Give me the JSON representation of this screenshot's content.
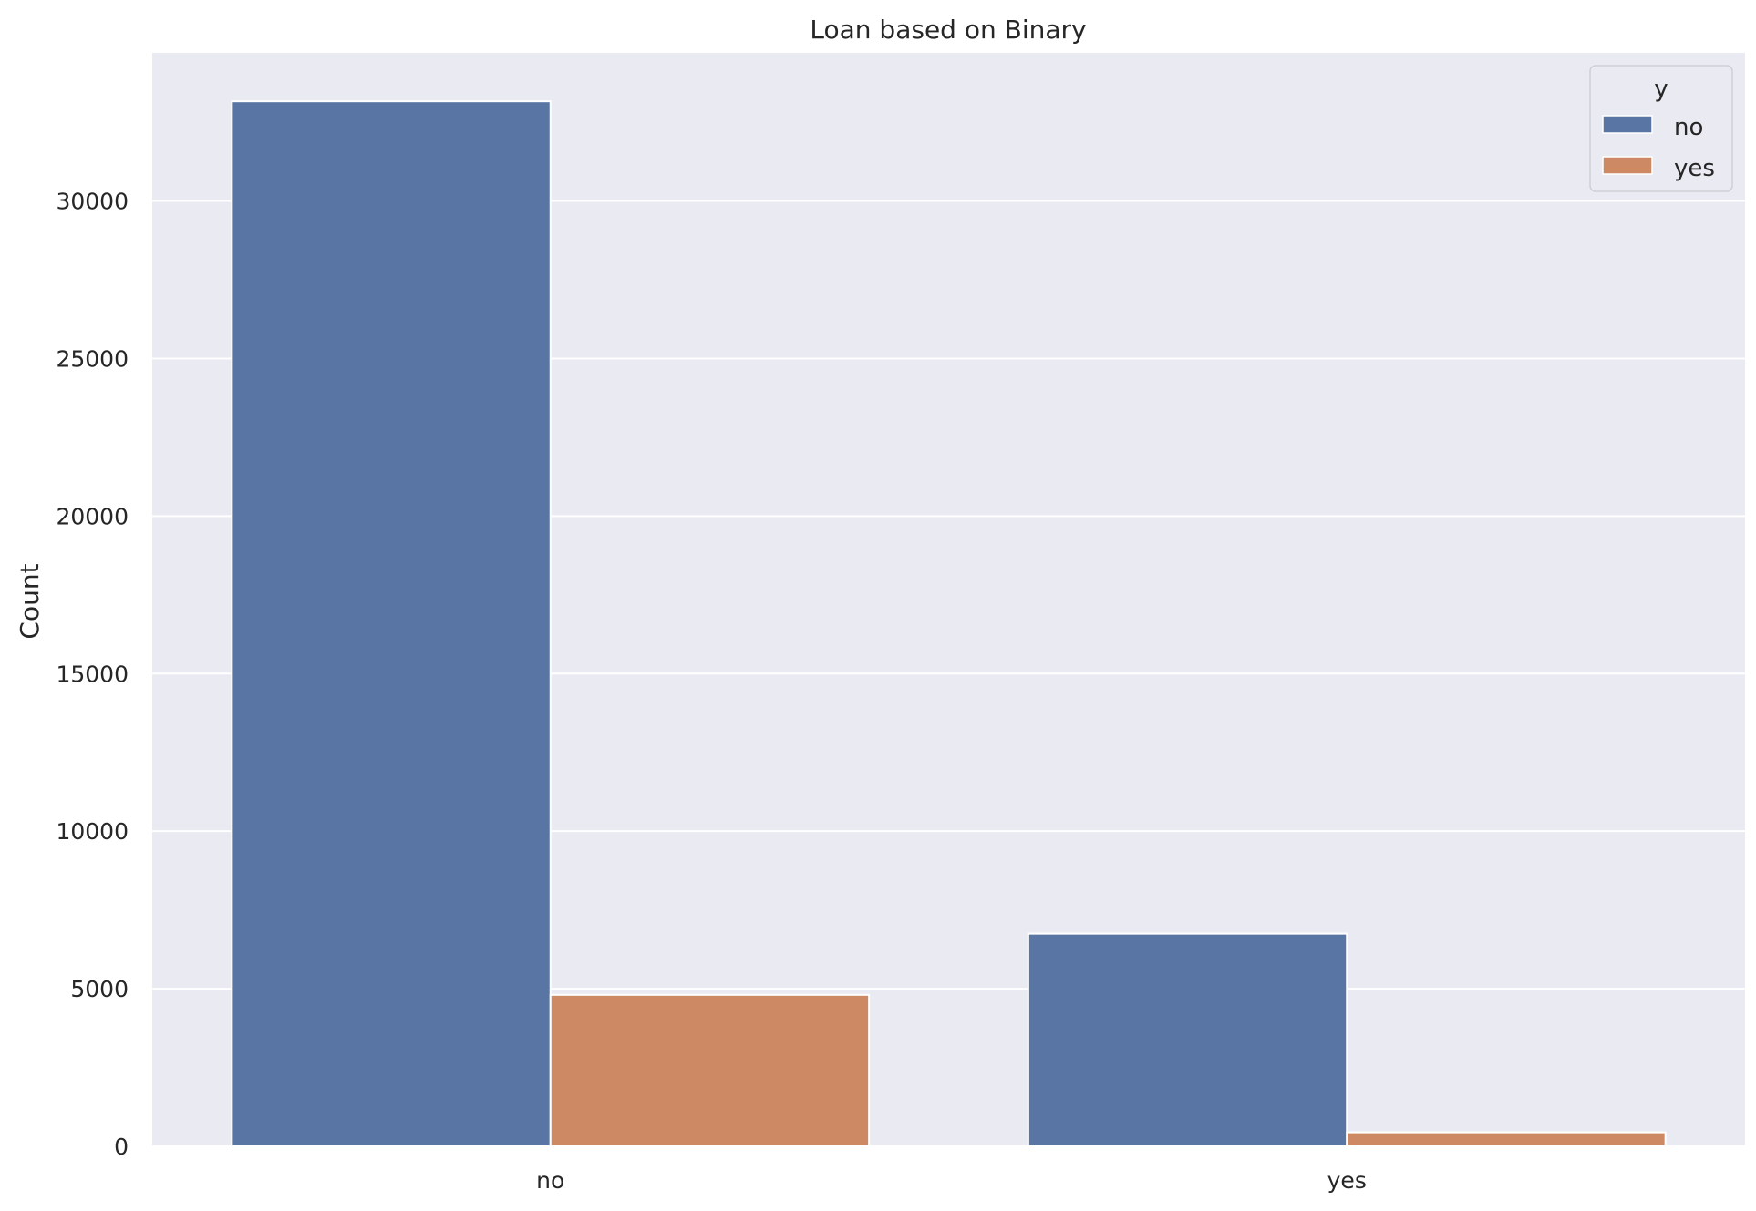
{
  "chart_data": {
    "type": "bar",
    "title": "Loan based on Binary",
    "xlabel": "",
    "ylabel": "Count",
    "categories": [
      "no",
      "yes"
    ],
    "series": [
      {
        "name": "no",
        "values": [
          33162,
          6748
        ],
        "color": "#5975a4"
      },
      {
        "name": "yes",
        "values": [
          4805,
          445
        ],
        "color": "#cc8963"
      }
    ],
    "ylim": [
      0,
      34700
    ],
    "yticks": [
      0,
      5000,
      10000,
      15000,
      20000,
      25000,
      30000
    ],
    "grid": true,
    "legend": {
      "title": "y",
      "placement": "top-right"
    },
    "background_color": "#eaeaf2",
    "grid_color": "#ffffff"
  }
}
